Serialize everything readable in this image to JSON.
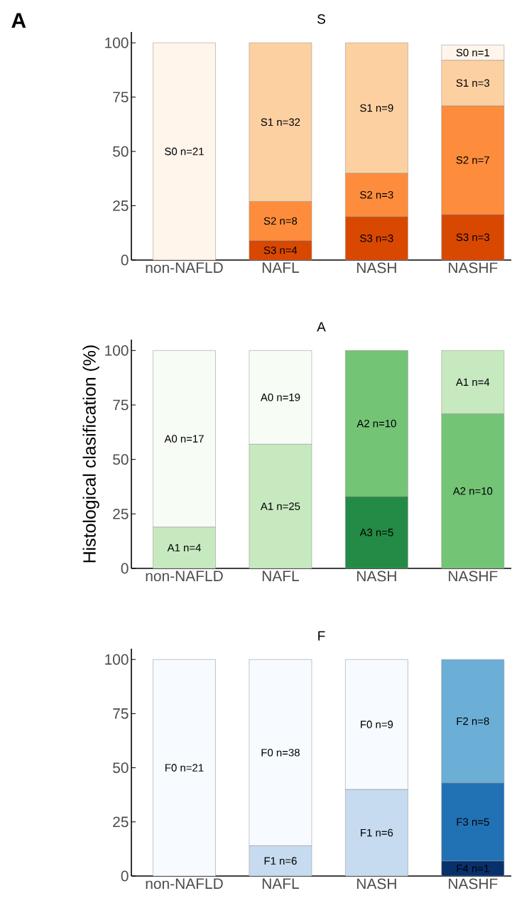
{
  "chart_data": [
    {
      "type": "bar",
      "title": "S",
      "annotations": [
        "**A**"
      ],
      "categories": [
        "non-NAFLD",
        "NAFL",
        "NASH",
        "NASHF"
      ],
      "stacked": true,
      "ylim": [
        0,
        105
      ],
      "yticks": [
        0,
        25,
        50,
        75,
        100
      ],
      "series": [
        {
          "color": "#d94801",
          "values": [
            null,
            9,
            20,
            21
          ],
          "value_labels": [
            null,
            "S3 n=4",
            "S3 n=3",
            "S3 n=3"
          ]
        },
        {
          "color": "#fd8d3c",
          "values": [
            null,
            18,
            20,
            50
          ],
          "value_labels": [
            null,
            "S2 n=8",
            "S2 n=3",
            "S2 n=7"
          ]
        },
        {
          "color": "#fdd0a2",
          "values": [
            null,
            73,
            60,
            21
          ],
          "value_labels": [
            null,
            "S1 n=32",
            "S1 n=9",
            "S1 n=3"
          ]
        },
        {
          "color": "#fff5eb",
          "values": [
            100,
            null,
            null,
            7
          ],
          "value_labels": [
            "S0 n=21",
            null,
            null,
            "S0 n=1"
          ]
        }
      ]
    },
    {
      "type": "bar",
      "title": "A",
      "ylabel": "Histological clasification (%)",
      "categories": [
        "non-NAFLD",
        "NAFL",
        "NASH",
        "NASHF"
      ],
      "stacked": true,
      "ylim": [
        0,
        105
      ],
      "yticks": [
        0,
        25,
        50,
        75,
        100
      ],
      "series": [
        {
          "color": "#238b45",
          "values": [
            null,
            null,
            33,
            null
          ],
          "value_labels": [
            null,
            null,
            "A3 n=5",
            null
          ]
        },
        {
          "color": "#74c476",
          "values": [
            null,
            null,
            67,
            71
          ],
          "value_labels": [
            null,
            null,
            "A2 n=10",
            "A2 n=10"
          ]
        },
        {
          "color": "#c7e9c0",
          "values": [
            19,
            57,
            null,
            29
          ],
          "value_labels": [
            "A1 n=4",
            "A1 n=25",
            null,
            "A1 n=4"
          ]
        },
        {
          "color": "#f7fcf5",
          "values": [
            81,
            43,
            null,
            null
          ],
          "value_labels": [
            "A0 n=17",
            "A0 n=19",
            null,
            null
          ]
        }
      ]
    },
    {
      "type": "bar",
      "title": "F",
      "categories": [
        "non-NAFLD",
        "NAFL",
        "NASH",
        "NASHF"
      ],
      "stacked": true,
      "ylim": [
        0,
        105
      ],
      "yticks": [
        0,
        25,
        50,
        75,
        100
      ],
      "series": [
        {
          "color": "#08306b",
          "values": [
            null,
            null,
            null,
            7
          ],
          "value_labels": [
            null,
            null,
            null,
            "F4 n=1"
          ]
        },
        {
          "color": "#2171b5",
          "values": [
            null,
            null,
            null,
            36
          ],
          "value_labels": [
            null,
            null,
            null,
            "F3 n=5"
          ]
        },
        {
          "color": "#6baed6",
          "values": [
            null,
            null,
            null,
            57
          ],
          "value_labels": [
            null,
            null,
            null,
            "F2 n=8"
          ]
        },
        {
          "color": "#c6dbef",
          "values": [
            null,
            14,
            40,
            null
          ],
          "value_labels": [
            null,
            "F1 n=6",
            "F1 n=6",
            null
          ]
        },
        {
          "color": "#f7fbff",
          "values": [
            100,
            86,
            60,
            null
          ],
          "value_labels": [
            "F0 n=21",
            "F0 n=38",
            "F0 n=9",
            null
          ]
        }
      ]
    }
  ]
}
